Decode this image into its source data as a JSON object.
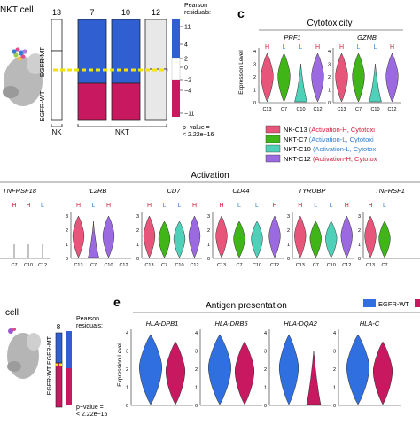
{
  "panel_letters": {
    "c": "c",
    "e": "e"
  },
  "umap_top": {
    "label": "NKT cell",
    "thumb_colors": [
      "#e04c8f",
      "#3a7bd5",
      "#9bd04a",
      "#b07be0",
      "#f0c040"
    ]
  },
  "umap_bottom": {
    "label": "cell"
  },
  "mosaic_top": {
    "col_counts": [
      "13",
      "7",
      "10",
      "12"
    ],
    "row_labels": [
      "EGFR-MT",
      "EGFR-WT"
    ],
    "group_labels": [
      "NK",
      "NKT"
    ],
    "legend_title": [
      "Pearson",
      "residuals:"
    ],
    "legend_ticks": [
      "11",
      "4",
      "2",
      "0",
      "−2",
      "−4",
      "−11"
    ],
    "pvalue": [
      "p−value =",
      "< 2.22e−16"
    ],
    "colors": {
      "blue": "#2f5fd0",
      "magenta": "#c8185f",
      "grey": "#e8e8e8",
      "highlight": "#f2e400"
    }
  },
  "mosaic_bottom": {
    "count": "8",
    "row_labels": [
      "EGFR-MT",
      "EGFR-WT"
    ],
    "legend_title": [
      "Pearson",
      "residuals:"
    ],
    "pvalue": [
      "p−value =",
      "< 2.22e−16"
    ]
  },
  "cytotoxicity": {
    "title": "Cytotoxicity",
    "ylabel": "Expression Level",
    "genes": [
      "PRF1",
      "GZMB"
    ],
    "categories": [
      "C13",
      "C7",
      "C10",
      "C12"
    ],
    "y_ticks": [
      "4",
      "3",
      "2",
      "1",
      "0"
    ],
    "gene_tags": [
      [
        "H",
        "L",
        "L",
        "H"
      ],
      [
        "H",
        "L",
        "L",
        "H"
      ]
    ],
    "tag_colors": {
      "H": "#d81b3c",
      "L": "#2f7fd0"
    }
  },
  "legend_c": {
    "items": [
      {
        "name": "NK-C13",
        "detail": "(Activation-H, Cytotoxi",
        "color": "#e8557a"
      },
      {
        "name": "NKT-C7",
        "detail": "(Activation-L, Cytotoxi",
        "color": "#3fb518"
      },
      {
        "name": "NKT-C10",
        "detail": "(Activation-L, Cytotox",
        "color": "#4fd0b8"
      },
      {
        "name": "NKT-C12",
        "detail": "(Activation-H, Cytotox",
        "color": "#9b6ae0"
      }
    ]
  },
  "activation": {
    "title": "Activation",
    "genes": [
      "TNFRSF18",
      "IL2RB",
      "CD7",
      "CD44",
      "TYROBP",
      "TNFRSF1"
    ],
    "categories": [
      "C7",
      "C10",
      "C12"
    ],
    "tags": [
      [
        "H",
        "H",
        "L"
      ],
      [
        "H",
        "L",
        "H"
      ],
      [
        "H",
        "L",
        "L",
        "H"
      ],
      [
        "H",
        "L",
        "L",
        "H"
      ],
      [
        "H",
        "L",
        "L",
        "H"
      ],
      [
        "H",
        "L"
      ]
    ],
    "y_ticks": [
      "3",
      "2",
      "1",
      "0"
    ]
  },
  "antigen": {
    "title": "Antigen presentation",
    "ylabel": "Expression Level",
    "genes": [
      "HLA-DPB1",
      "HLA-DRB5",
      "HLA-DQA2",
      "HLA-C"
    ],
    "y_ticks": [
      "4",
      "3",
      "2",
      "1",
      "0"
    ],
    "legend": [
      {
        "name": "EGFR-WT",
        "color": "#2f6fe0"
      },
      {
        "name": "",
        "color": "#c8185f"
      }
    ]
  }
}
